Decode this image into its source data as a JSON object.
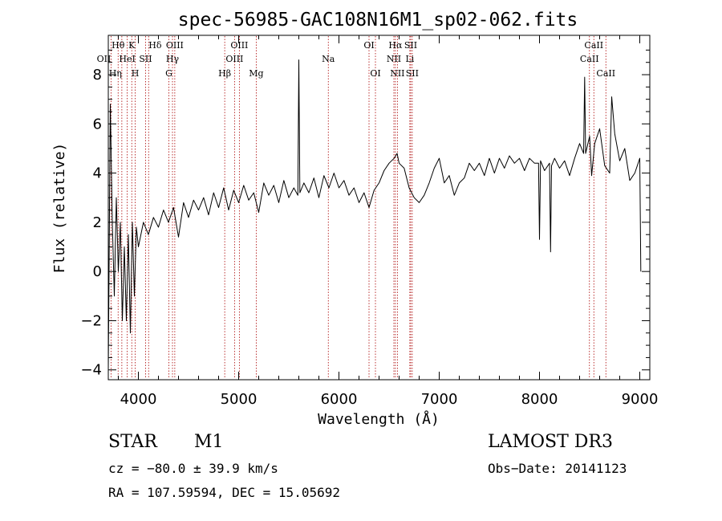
{
  "chart_data": {
    "type": "line",
    "title": "spec-56985-GAC108N16M1_sp02-062.fits",
    "xlabel": "Wavelength (Å)",
    "ylabel": "Flux (relative)",
    "xlim": [
      3700,
      9100
    ],
    "ylim": [
      -4.4,
      9.6
    ],
    "x_ticks": [
      4000,
      5000,
      6000,
      7000,
      8000,
      9000
    ],
    "y_ticks": [
      -4,
      -2,
      0,
      2,
      4,
      6,
      8
    ],
    "series": [
      {
        "name": "spectrum",
        "x": [
          3700,
          3720,
          3740,
          3760,
          3780,
          3800,
          3820,
          3840,
          3860,
          3880,
          3900,
          3920,
          3940,
          3960,
          3980,
          4000,
          4050,
          4100,
          4150,
          4200,
          4250,
          4300,
          4350,
          4400,
          4450,
          4500,
          4550,
          4600,
          4650,
          4700,
          4750,
          4800,
          4850,
          4900,
          4950,
          5000,
          5050,
          5100,
          5150,
          5200,
          5250,
          5300,
          5350,
          5400,
          5450,
          5500,
          5550,
          5590,
          5600,
          5610,
          5650,
          5700,
          5750,
          5800,
          5850,
          5900,
          5950,
          6000,
          6050,
          6100,
          6150,
          6200,
          6250,
          6300,
          6350,
          6400,
          6450,
          6500,
          6550,
          6580,
          6600,
          6650,
          6700,
          6750,
          6800,
          6850,
          6900,
          6950,
          7000,
          7050,
          7100,
          7150,
          7200,
          7250,
          7300,
          7350,
          7400,
          7450,
          7500,
          7550,
          7600,
          7650,
          7700,
          7750,
          7800,
          7850,
          7900,
          7950,
          7990,
          8000,
          8010,
          8050,
          8100,
          8110,
          8120,
          8150,
          8200,
          8250,
          8300,
          8350,
          8400,
          8440,
          8450,
          8460,
          8500,
          8520,
          8550,
          8600,
          8650,
          8700,
          8720,
          8750,
          8800,
          8850,
          8900,
          8950,
          9000,
          9010
        ],
        "y": [
          -4,
          6.8,
          2,
          -1,
          3,
          0,
          2,
          -2,
          1,
          -2,
          1.5,
          -2.5,
          2,
          -1,
          1.8,
          1,
          2,
          1.5,
          2.2,
          1.8,
          2.5,
          2,
          2.6,
          1.4,
          2.8,
          2.2,
          2.9,
          2.5,
          3,
          2.3,
          3.2,
          2.6,
          3.4,
          2.5,
          3.3,
          2.8,
          3.5,
          2.9,
          3.2,
          2.4,
          3.6,
          3.1,
          3.5,
          2.8,
          3.7,
          3,
          3.4,
          3.1,
          8.6,
          3.2,
          3.6,
          3.2,
          3.8,
          3,
          3.9,
          3.4,
          4,
          3.4,
          3.7,
          3.1,
          3.4,
          2.8,
          3.2,
          2.6,
          3.3,
          3.6,
          4.1,
          4.4,
          4.6,
          4.8,
          4.4,
          4.2,
          3.4,
          3,
          2.8,
          3.1,
          3.6,
          4.2,
          4.6,
          3.6,
          3.9,
          3.1,
          3.6,
          3.8,
          4.4,
          4.1,
          4.4,
          3.9,
          4.6,
          4,
          4.6,
          4.2,
          4.7,
          4.4,
          4.6,
          4.1,
          4.6,
          4.4,
          4.4,
          1.3,
          4.5,
          4.1,
          4.4,
          0.8,
          4.3,
          4.6,
          4.2,
          4.5,
          3.9,
          4.6,
          5.2,
          4.8,
          7.9,
          4.8,
          5.5,
          3.9,
          5.2,
          5.8,
          4.3,
          4,
          7.1,
          5.6,
          4.5,
          5,
          3.7,
          4,
          4.6,
          0
        ]
      }
    ],
    "lines": [
      {
        "name": "OII",
        "w": 3727,
        "row": 1,
        "side": "right"
      },
      {
        "name": "Hθ",
        "w": 3798,
        "row": 0,
        "side": "center"
      },
      {
        "name": "Hη",
        "w": 3835,
        "row": 2,
        "side": "right"
      },
      {
        "name": "HeI",
        "w": 3889,
        "row": 1,
        "side": "center"
      },
      {
        "name": "K",
        "w": 3934,
        "row": 0,
        "side": "center"
      },
      {
        "name": "H",
        "w": 3968,
        "row": 2,
        "side": "center"
      },
      {
        "name": "SII",
        "w": 4072,
        "row": 1,
        "side": "center"
      },
      {
        "name": "Hδ",
        "w": 4102,
        "row": 0,
        "side": "left"
      },
      {
        "name": "G",
        "w": 4304,
        "row": 2,
        "side": "center"
      },
      {
        "name": "Hγ",
        "w": 4340,
        "row": 1,
        "side": "center"
      },
      {
        "name": "OIII",
        "w": 4363,
        "row": 0,
        "side": "center"
      },
      {
        "name": "Hβ",
        "w": 4861,
        "row": 2,
        "side": "center"
      },
      {
        "name": "OIII",
        "w": 4959,
        "row": 1,
        "side": "center"
      },
      {
        "name": "OIII",
        "w": 5007,
        "row": 0,
        "side": "center"
      },
      {
        "name": "Mg",
        "w": 5175,
        "row": 2,
        "side": "center"
      },
      {
        "name": "Na",
        "w": 5894,
        "row": 1,
        "side": "center"
      },
      {
        "name": "OI",
        "w": 6300,
        "row": 0,
        "side": "center"
      },
      {
        "name": "OI",
        "w": 6364,
        "row": 2,
        "side": "center"
      },
      {
        "name": "NII",
        "w": 6548,
        "row": 1,
        "side": "center"
      },
      {
        "name": "Hα",
        "w": 6563,
        "row": 0,
        "side": "center"
      },
      {
        "name": "NII",
        "w": 6583,
        "row": 2,
        "side": "center"
      },
      {
        "name": "Li",
        "w": 6707,
        "row": 1,
        "side": "center"
      },
      {
        "name": "SII",
        "w": 6716,
        "row": 0,
        "side": "center"
      },
      {
        "name": "SII",
        "w": 6731,
        "row": 2,
        "side": "center"
      },
      {
        "name": "CaII",
        "w": 8498,
        "row": 1,
        "side": "center"
      },
      {
        "name": "CaII",
        "w": 8542,
        "row": 0,
        "side": "center"
      },
      {
        "name": "CaII",
        "w": 8662,
        "row": 2,
        "side": "center"
      }
    ]
  },
  "info": {
    "class": "STAR",
    "subclass": "M1",
    "survey": "LAMOST DR3",
    "cz": "cz = −80.0 ± 39.9 km/s",
    "obs_date": "Obs−Date: 20141123",
    "radec": "RA = 107.59594, DEC =  15.05692"
  },
  "colors": {
    "spectrum": "#000000",
    "line_marker": "#aa0000",
    "axes": "#000000"
  }
}
